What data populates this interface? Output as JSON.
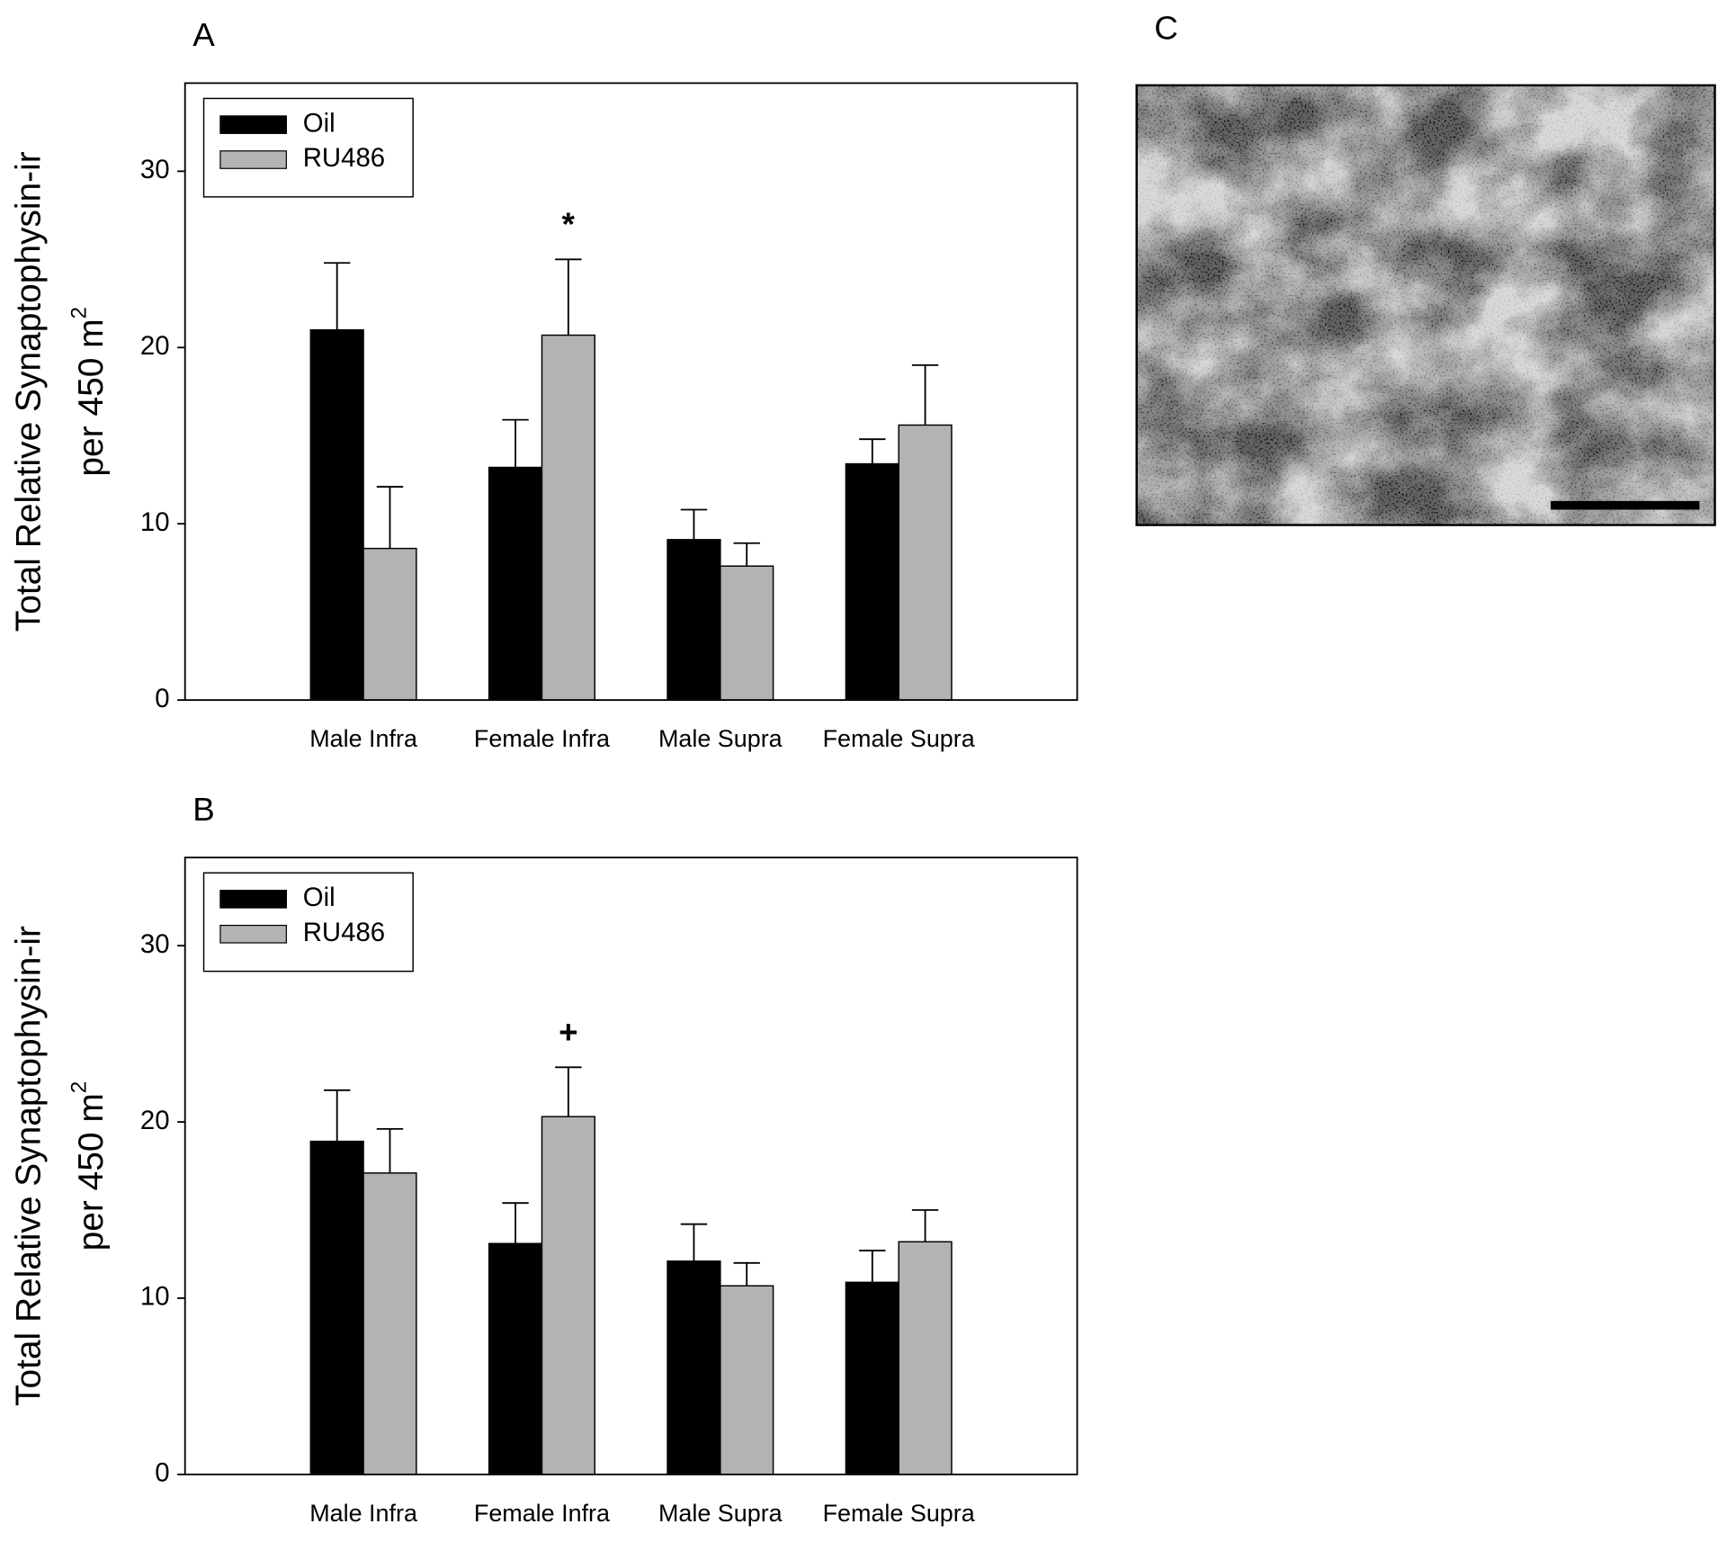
{
  "chart_data": [
    {
      "type": "bar",
      "title": "A",
      "ylabel": [
        "Total Relative Synaptophysin-ir",
        "per 450 m"
      ],
      "ylabel_sup": "2",
      "categories": [
        "Male Infra",
        "Female Infra",
        "Male Supra",
        "Female Supra"
      ],
      "series": [
        {
          "name": "Oil",
          "color": "#000000",
          "values": [
            21,
            13.2,
            9.1,
            13.4
          ],
          "errors": [
            3.8,
            2.7,
            1.7,
            1.4
          ]
        },
        {
          "name": "RU486",
          "color": "#b3b3b3",
          "values": [
            8.6,
            20.7,
            7.6,
            15.6
          ],
          "errors": [
            3.5,
            4.3,
            1.3,
            3.4
          ]
        }
      ],
      "annotations": [
        {
          "text": "*",
          "category": "Female Infra",
          "series": "RU486"
        }
      ],
      "ylim": [
        0,
        35
      ],
      "yticks": [
        0,
        10,
        20,
        30
      ],
      "legend": "upper left"
    },
    {
      "type": "bar",
      "title": "B",
      "ylabel": [
        "Total Relative Synaptophysin-ir",
        "per 450 m"
      ],
      "ylabel_sup": "2",
      "categories": [
        "Male Infra",
        "Female Infra",
        "Male Supra",
        "Female Supra"
      ],
      "series": [
        {
          "name": "Oil",
          "color": "#000000",
          "values": [
            18.9,
            13.1,
            12.1,
            10.9
          ],
          "errors": [
            2.9,
            2.3,
            2.1,
            1.8
          ]
        },
        {
          "name": "RU486",
          "color": "#b3b3b3",
          "values": [
            17.1,
            20.3,
            10.7,
            13.2
          ],
          "errors": [
            2.5,
            2.8,
            1.3,
            1.8
          ]
        }
      ],
      "annotations": [
        {
          "text": "+",
          "category": "Female Infra",
          "series": "RU486"
        }
      ],
      "ylim": [
        0,
        35
      ],
      "yticks": [
        0,
        10,
        20,
        30
      ],
      "legend": "upper left"
    }
  ],
  "image_panel": {
    "label": "C"
  }
}
